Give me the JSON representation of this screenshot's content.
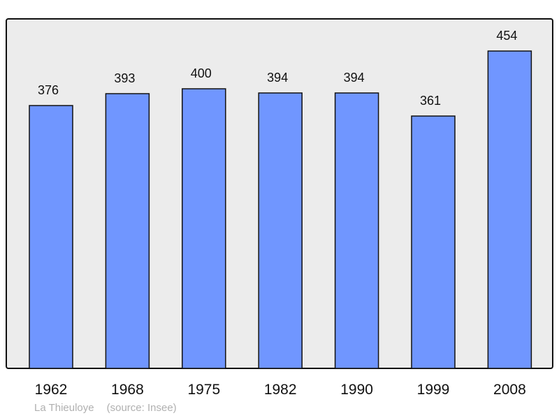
{
  "chart_data": {
    "type": "bar",
    "categories": [
      "1962",
      "1968",
      "1975",
      "1982",
      "1990",
      "1999",
      "2008"
    ],
    "values": [
      376,
      393,
      400,
      394,
      394,
      361,
      454
    ],
    "ylim": [
      0,
      500
    ],
    "grid": false,
    "data_labels": true,
    "bar_color": "#7096ff",
    "background_color": "#ececec"
  },
  "footer": {
    "place": "La Thieuloye",
    "source": "(source: Insee)"
  }
}
